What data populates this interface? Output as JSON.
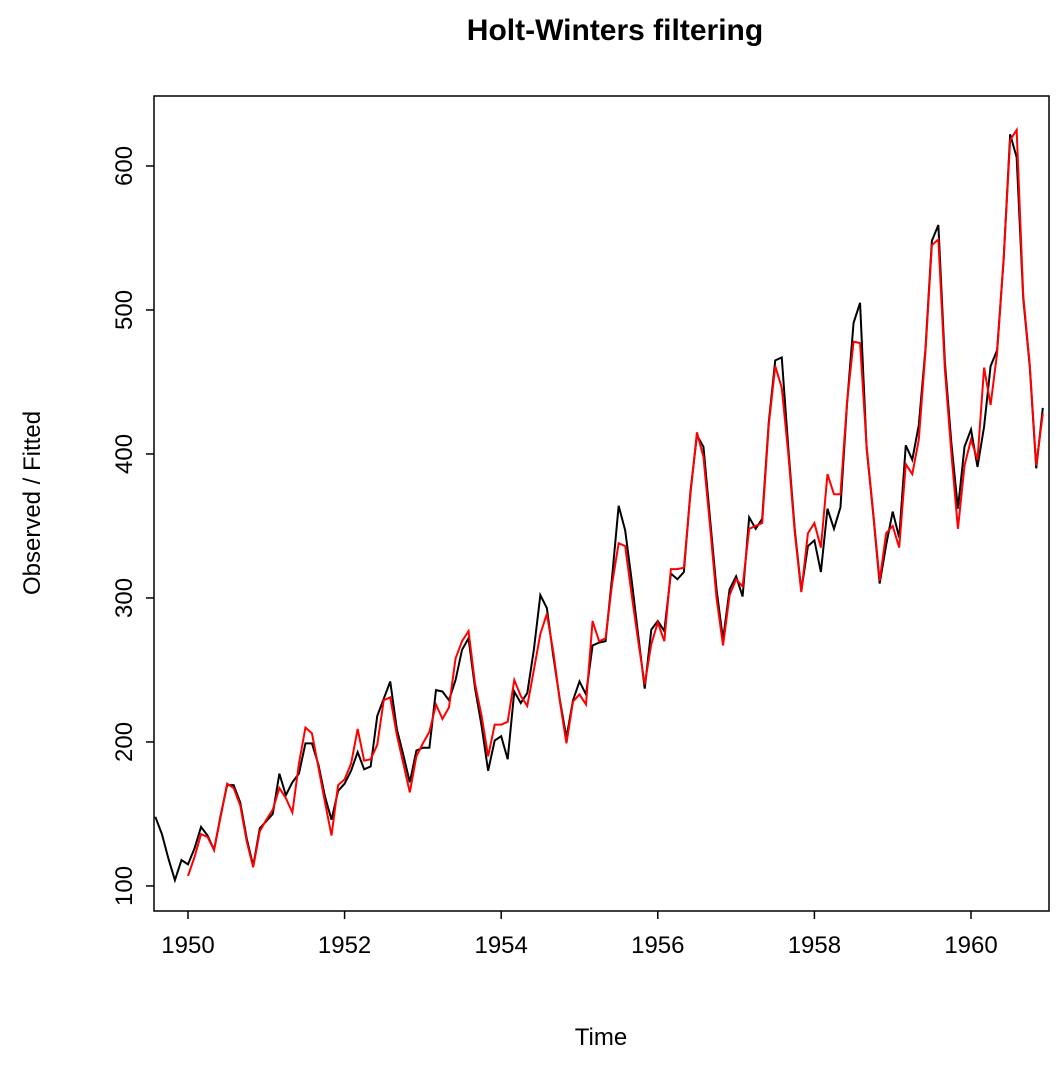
{
  "chart_data": {
    "type": "line",
    "title": "Holt-Winters filtering",
    "xlabel": "Time",
    "ylabel": "Observed / Fitted",
    "x": [
      1949.583,
      1949.667,
      1949.75,
      1949.833,
      1949.917,
      1950,
      1950.083,
      1950.167,
      1950.25,
      1950.333,
      1950.417,
      1950.5,
      1950.583,
      1950.667,
      1950.75,
      1950.833,
      1950.917,
      1951,
      1951.083,
      1951.167,
      1951.25,
      1951.333,
      1951.417,
      1951.5,
      1951.583,
      1951.667,
      1951.75,
      1951.833,
      1951.917,
      1952,
      1952.083,
      1952.167,
      1952.25,
      1952.333,
      1952.417,
      1952.5,
      1952.583,
      1952.667,
      1952.75,
      1952.833,
      1952.917,
      1953,
      1953.083,
      1953.167,
      1953.25,
      1953.333,
      1953.417,
      1953.5,
      1953.583,
      1953.667,
      1953.75,
      1953.833,
      1953.917,
      1954,
      1954.083,
      1954.167,
      1954.25,
      1954.333,
      1954.417,
      1954.5,
      1954.583,
      1954.667,
      1954.75,
      1954.833,
      1954.917,
      1955,
      1955.083,
      1955.167,
      1955.25,
      1955.333,
      1955.417,
      1955.5,
      1955.583,
      1955.667,
      1955.75,
      1955.833,
      1955.917,
      1956,
      1956.083,
      1956.167,
      1956.25,
      1956.333,
      1956.417,
      1956.5,
      1956.583,
      1956.667,
      1956.75,
      1956.833,
      1956.917,
      1957,
      1957.083,
      1957.167,
      1957.25,
      1957.333,
      1957.417,
      1957.5,
      1957.583,
      1957.667,
      1957.75,
      1957.833,
      1957.917,
      1958,
      1958.083,
      1958.167,
      1958.25,
      1958.333,
      1958.417,
      1958.5,
      1958.583,
      1958.667,
      1958.75,
      1958.833,
      1958.917,
      1959,
      1959.083,
      1959.167,
      1959.25,
      1959.333,
      1959.417,
      1959.5,
      1959.583,
      1959.667,
      1959.75,
      1959.833,
      1959.917,
      1960,
      1960.083,
      1960.167,
      1960.25,
      1960.333,
      1960.417,
      1960.5,
      1960.583,
      1960.667,
      1960.75,
      1960.833,
      1960.917
    ],
    "series": [
      {
        "color": "#000000",
        "values": [
          148,
          136,
          119,
          104,
          118,
          115,
          126,
          141,
          135,
          125,
          149,
          170,
          170,
          158,
          133,
          114,
          140,
          145,
          150,
          178,
          163,
          172,
          178,
          199,
          199,
          184,
          162,
          146,
          166,
          171,
          180,
          193,
          181,
          183,
          218,
          230,
          242,
          209,
          191,
          172,
          194,
          196,
          196,
          236,
          235,
          229,
          243,
          264,
          272,
          237,
          211,
          180,
          201,
          204,
          188,
          235,
          227,
          234,
          264,
          302,
          293,
          259,
          229,
          203,
          229,
          242,
          233,
          267,
          269,
          270,
          315,
          364,
          347,
          312,
          274,
          237,
          278,
          284,
          277,
          317,
          313,
          318,
          374,
          413,
          405,
          355,
          306,
          271,
          306,
          315,
          301,
          356,
          348,
          355,
          422,
          465,
          467,
          404,
          347,
          305,
          336,
          340,
          318,
          362,
          348,
          363,
          435,
          491,
          505,
          404,
          359,
          310,
          337,
          360,
          342,
          406,
          396,
          420,
          472,
          548,
          559,
          463,
          407,
          362,
          405,
          417,
          391,
          419,
          461,
          472,
          535,
          622,
          606,
          508,
          461,
          390,
          432
        ]
      },
      {
        "color": "#ff0000",
        "values": [
          null,
          null,
          null,
          null,
          null,
          107,
          120,
          136,
          134,
          125,
          148,
          171,
          168,
          156,
          131,
          113,
          138,
          146,
          153,
          168,
          161,
          151,
          185,
          210,
          206,
          182,
          158,
          135,
          170,
          174,
          185,
          209,
          187,
          188,
          198,
          229,
          231,
          205,
          185,
          165,
          190,
          199,
          207,
          226,
          216,
          224,
          258,
          270,
          277,
          240,
          218,
          190,
          212,
          212,
          214,
          243,
          232,
          225,
          250,
          275,
          289,
          262,
          228,
          199,
          228,
          233,
          226,
          284,
          270,
          272,
          310,
          338,
          336,
          302,
          270,
          240,
          268,
          283,
          270,
          320,
          320,
          321,
          372,
          415,
          398,
          350,
          300,
          267,
          302,
          313,
          308,
          348,
          350,
          352,
          420,
          461,
          446,
          400,
          345,
          304,
          345,
          352,
          335,
          386,
          372,
          372,
          436,
          478,
          477,
          405,
          360,
          312,
          345,
          350,
          335,
          393,
          386,
          410,
          470,
          545,
          549,
          458,
          400,
          348,
          392,
          410,
          396,
          460,
          434,
          470,
          536,
          618,
          625,
          510,
          462,
          392,
          428
        ]
      }
    ],
    "xlim": [
      1949.566,
      1960.996
    ],
    "ylim": [
      82.6,
      648.6
    ],
    "xticks": [
      1950,
      1952,
      1954,
      1956,
      1958,
      1960
    ],
    "yticks": [
      100,
      200,
      300,
      400,
      500,
      600
    ]
  }
}
